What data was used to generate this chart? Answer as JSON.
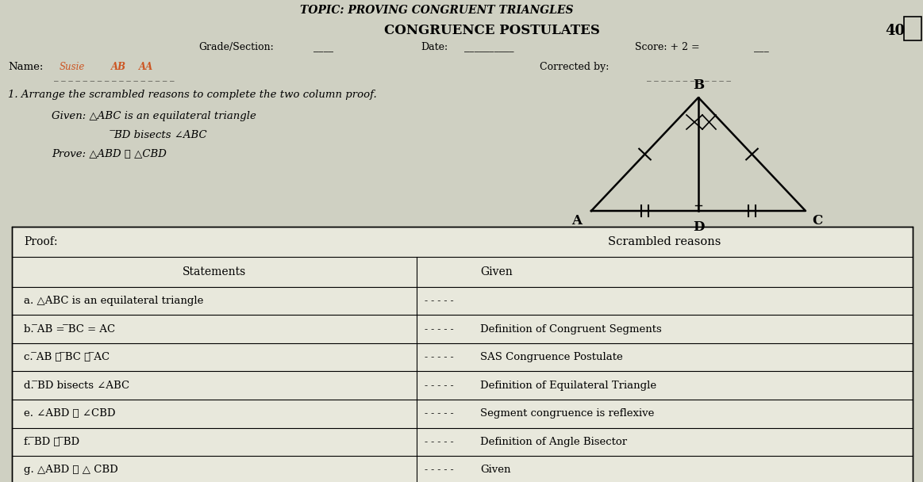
{
  "title_line1": "TOPIC: PROVING CONGRUENT TRIANGLES",
  "title_line2": "CONGRUENCE POSTULATES",
  "score_right": "40",
  "instruction": "1. Arrange the scrambled reasons to complete the two column proof.",
  "given_line1": "Given: △ABC is an equilateral triangle",
  "given_line2_indent": "                ̅BD bisects ∠ABC",
  "prove_line": "Prove: △ABD ≅ △CBD",
  "proof_header": "Proof:",
  "scrambled_header": "Scrambled reasons",
  "statements_header": "Statements",
  "statements": [
    "a. △ABC is an equilateral triangle",
    "b. ̅AB = ̅BC = AC",
    "c. ̅AB ≅ ̅BC ≅ ̅AC",
    "d. ̅BD bisects ∠ABC",
    "e. ∠ABD ≅ ∠CBD",
    "f. ̅BD ≅ ̅BD",
    "g. △ABD ≅ △ CBD"
  ],
  "reasons": [
    "Given",
    "Definition of Congruent Segments",
    "SAS Congruence Postulate",
    "Definition of Equilateral Triangle",
    "Segment congruence is reflexive",
    "Definition of Angle Bisector",
    "Given"
  ],
  "bg_color": "#cfd0c2",
  "table_bg": "#ddddd0",
  "white_bg": "#e8e8dc"
}
